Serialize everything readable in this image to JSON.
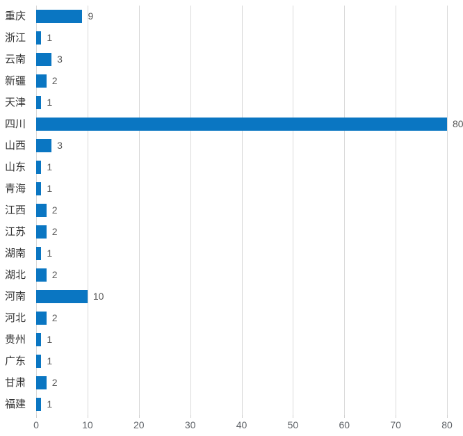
{
  "chart_data": {
    "type": "bar",
    "orientation": "horizontal",
    "title": "",
    "xlabel": "",
    "ylabel": "",
    "categories": [
      "重庆",
      "浙江",
      "云南",
      "新疆",
      "天津",
      "四川",
      "山西",
      "山东",
      "青海",
      "江西",
      "江苏",
      "湖南",
      "湖北",
      "河南",
      "河北",
      "贵州",
      "广东",
      "甘肃",
      "福建"
    ],
    "values": [
      9,
      1,
      3,
      2,
      1,
      80,
      3,
      1,
      1,
      2,
      2,
      1,
      2,
      10,
      2,
      1,
      1,
      2,
      1
    ],
    "xlim": [
      0,
      80
    ],
    "x_ticks": [
      0,
      10,
      20,
      30,
      40,
      50,
      60,
      70,
      80
    ],
    "grid": "vertical-gridlines-on",
    "legend": "none",
    "data_labels": "outside-end",
    "colors": {
      "bar": "#0a76c2",
      "gridline": "#d9d9d9",
      "category_label": "#333333",
      "value_label": "#595959",
      "axis_label": "#5f6368",
      "background": "#ffffff"
    }
  }
}
